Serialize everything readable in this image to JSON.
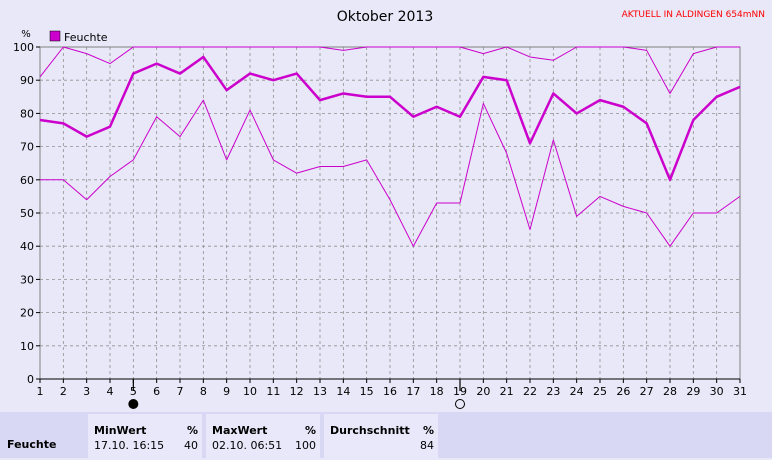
{
  "header": {
    "title": "Oktober 2013",
    "station": "AKTUELL IN ALDINGEN 654mNN"
  },
  "colors": {
    "series": "#cc00cc",
    "station": "#ff0000",
    "background": "#e8e8f8",
    "grid": "#909090"
  },
  "icons": [
    "full-moon-icon",
    "new-moon-icon"
  ],
  "chart_data": {
    "type": "line",
    "ylabel": "%",
    "legend": "Feuchte",
    "legend_placement": "top-left",
    "x": [
      1,
      2,
      3,
      4,
      5,
      6,
      7,
      8,
      9,
      10,
      11,
      12,
      13,
      14,
      15,
      16,
      17,
      18,
      19,
      20,
      21,
      22,
      23,
      24,
      25,
      26,
      27,
      28,
      29,
      30,
      31
    ],
    "xlim": [
      1,
      31
    ],
    "ylim": [
      0,
      100
    ],
    "yticks": [
      0,
      10,
      20,
      30,
      40,
      50,
      60,
      70,
      80,
      90,
      100
    ],
    "grid": true,
    "moon_markers": [
      {
        "day": 5,
        "icon": "full-moon-icon"
      },
      {
        "day": 19,
        "icon": "new-moon-icon"
      }
    ],
    "series": [
      {
        "name": "Feuchte",
        "role": "max",
        "values": [
          91,
          100,
          98,
          95,
          100,
          100,
          100,
          100,
          100,
          100,
          100,
          100,
          100,
          99,
          100,
          100,
          100,
          100,
          100,
          98,
          100,
          97,
          96,
          100,
          100,
          100,
          99,
          86,
          98,
          100,
          100
        ]
      },
      {
        "name": "Feuchte",
        "role": "mean",
        "values": [
          78,
          77,
          73,
          76,
          92,
          95,
          92,
          97,
          87,
          92,
          90,
          92,
          84,
          86,
          85,
          85,
          79,
          82,
          79,
          91,
          90,
          71,
          86,
          80,
          84,
          82,
          77,
          60,
          78,
          85,
          88
        ]
      },
      {
        "name": "Feuchte",
        "role": "min",
        "values": [
          60,
          60,
          54,
          61,
          66,
          79,
          73,
          84,
          66,
          81,
          66,
          62,
          64,
          64,
          66,
          54,
          40,
          53,
          53,
          83,
          68,
          45,
          72,
          49,
          55,
          52,
          50,
          40,
          50,
          50,
          55
        ]
      }
    ]
  },
  "stats": {
    "row_label": "Feuchte",
    "min_header": "MinWert",
    "min_unit": "%",
    "min_time": "17.10.  16:15",
    "min_value": "40",
    "max_header": "MaxWert",
    "max_unit": "%",
    "max_time": "02.10.  06:51",
    "max_value": "100",
    "avg_header": "Durchschnitt",
    "avg_unit": "%",
    "avg_value": "84"
  }
}
